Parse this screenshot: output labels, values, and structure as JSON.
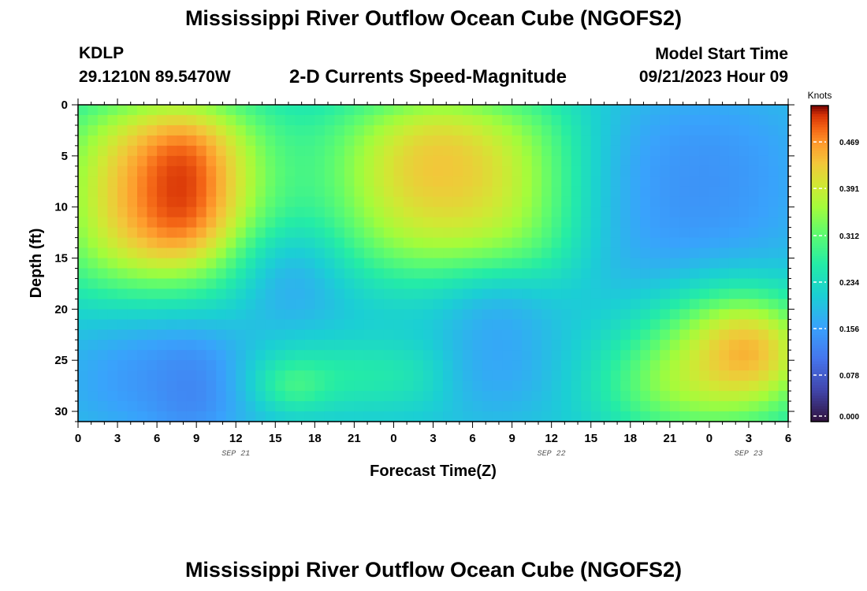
{
  "header": {
    "title": "Mississippi River Outflow Ocean Cube (NGOFS2)",
    "station": "KDLP",
    "coords": "29.1210N  89.5470W",
    "subtitle": "2-D Currents Speed-Magnitude",
    "model_start_label": "Model Start Time",
    "model_start_value": "09/21/2023 Hour 09"
  },
  "footer": {
    "title": "Mississippi River Outflow Ocean Cube (NGOFS2)"
  },
  "chart_data": {
    "type": "heatmap",
    "title": "2-D Currents Speed-Magnitude",
    "xlabel": "Forecast Time(Z)",
    "ylabel": "Depth (ft)",
    "x_range_hours": [
      0,
      54
    ],
    "x_tick_labels": [
      "0",
      "3",
      "6",
      "9",
      "12",
      "15",
      "18",
      "21",
      "0",
      "3",
      "6",
      "9",
      "12",
      "15",
      "18",
      "21",
      "0",
      "3",
      "6"
    ],
    "date_labels": [
      {
        "label": "SEP 21",
        "hour": 12
      },
      {
        "label": "SEP 22",
        "hour": 36
      },
      {
        "label": "SEP 23",
        "hour": 51
      }
    ],
    "ylim": [
      31,
      0
    ],
    "y_ticks": [
      0,
      5,
      10,
      15,
      20,
      25,
      30
    ],
    "colorbar": {
      "unit": "Knots",
      "min": 0.0,
      "max": 0.53,
      "ticks": [
        "0.000",
        "0.078",
        "0.156",
        "0.234",
        "0.312",
        "0.391",
        "0.469"
      ],
      "tick_values": [
        0.0,
        0.078,
        0.156,
        0.234,
        0.312,
        0.391,
        0.469
      ]
    },
    "background_value": 0.2,
    "features": [
      {
        "t0": 0,
        "t1": 13,
        "d0": 0,
        "d1": 17.5,
        "v": 0.52,
        "sigma": 2.8
      },
      {
        "t0": 6,
        "t1": 10,
        "d0": 2,
        "d1": 14,
        "v": 0.56,
        "sigma": 1.6
      },
      {
        "t0": 20,
        "t1": 37,
        "d0": 0,
        "d1": 16,
        "v": 0.43,
        "sigma": 2.4
      },
      {
        "t0": 25,
        "t1": 30,
        "d0": 1,
        "d1": 9,
        "v": 0.47,
        "sigma": 2.0
      },
      {
        "t0": 41,
        "t1": 54,
        "d0": 0,
        "d1": 20,
        "v": 0.13,
        "sigma": 2.4
      },
      {
        "t0": 46,
        "t1": 54,
        "d0": 19,
        "d1": 30,
        "v": 0.5,
        "sigma": 2.6
      },
      {
        "t0": 42,
        "t1": 48,
        "d0": 25,
        "d1": 30,
        "v": 0.48,
        "sigma": 2.4
      },
      {
        "t0": 49,
        "t1": 53,
        "d0": 21,
        "d1": 27,
        "v": 0.53,
        "sigma": 1.6
      },
      {
        "t0": 14,
        "t1": 18,
        "d0": 13,
        "d1": 21,
        "v": 0.09,
        "sigma": 2.0
      },
      {
        "t0": 7,
        "t1": 10,
        "d0": 24,
        "d1": 31,
        "v": 0.03,
        "sigma": 1.4
      },
      {
        "t0": 0,
        "t1": 12,
        "d0": 22,
        "d1": 31,
        "v": 0.13,
        "sigma": 2.2
      },
      {
        "t0": 14,
        "t1": 28,
        "d0": 24,
        "d1": 29,
        "v": 0.28,
        "sigma": 1.4
      },
      {
        "t0": 15,
        "t1": 18,
        "d0": 26,
        "d1": 29,
        "v": 0.34,
        "sigma": 1.0
      },
      {
        "t0": 29,
        "t1": 35,
        "d0": 18,
        "d1": 30,
        "v": 0.15,
        "sigma": 1.6
      }
    ]
  }
}
